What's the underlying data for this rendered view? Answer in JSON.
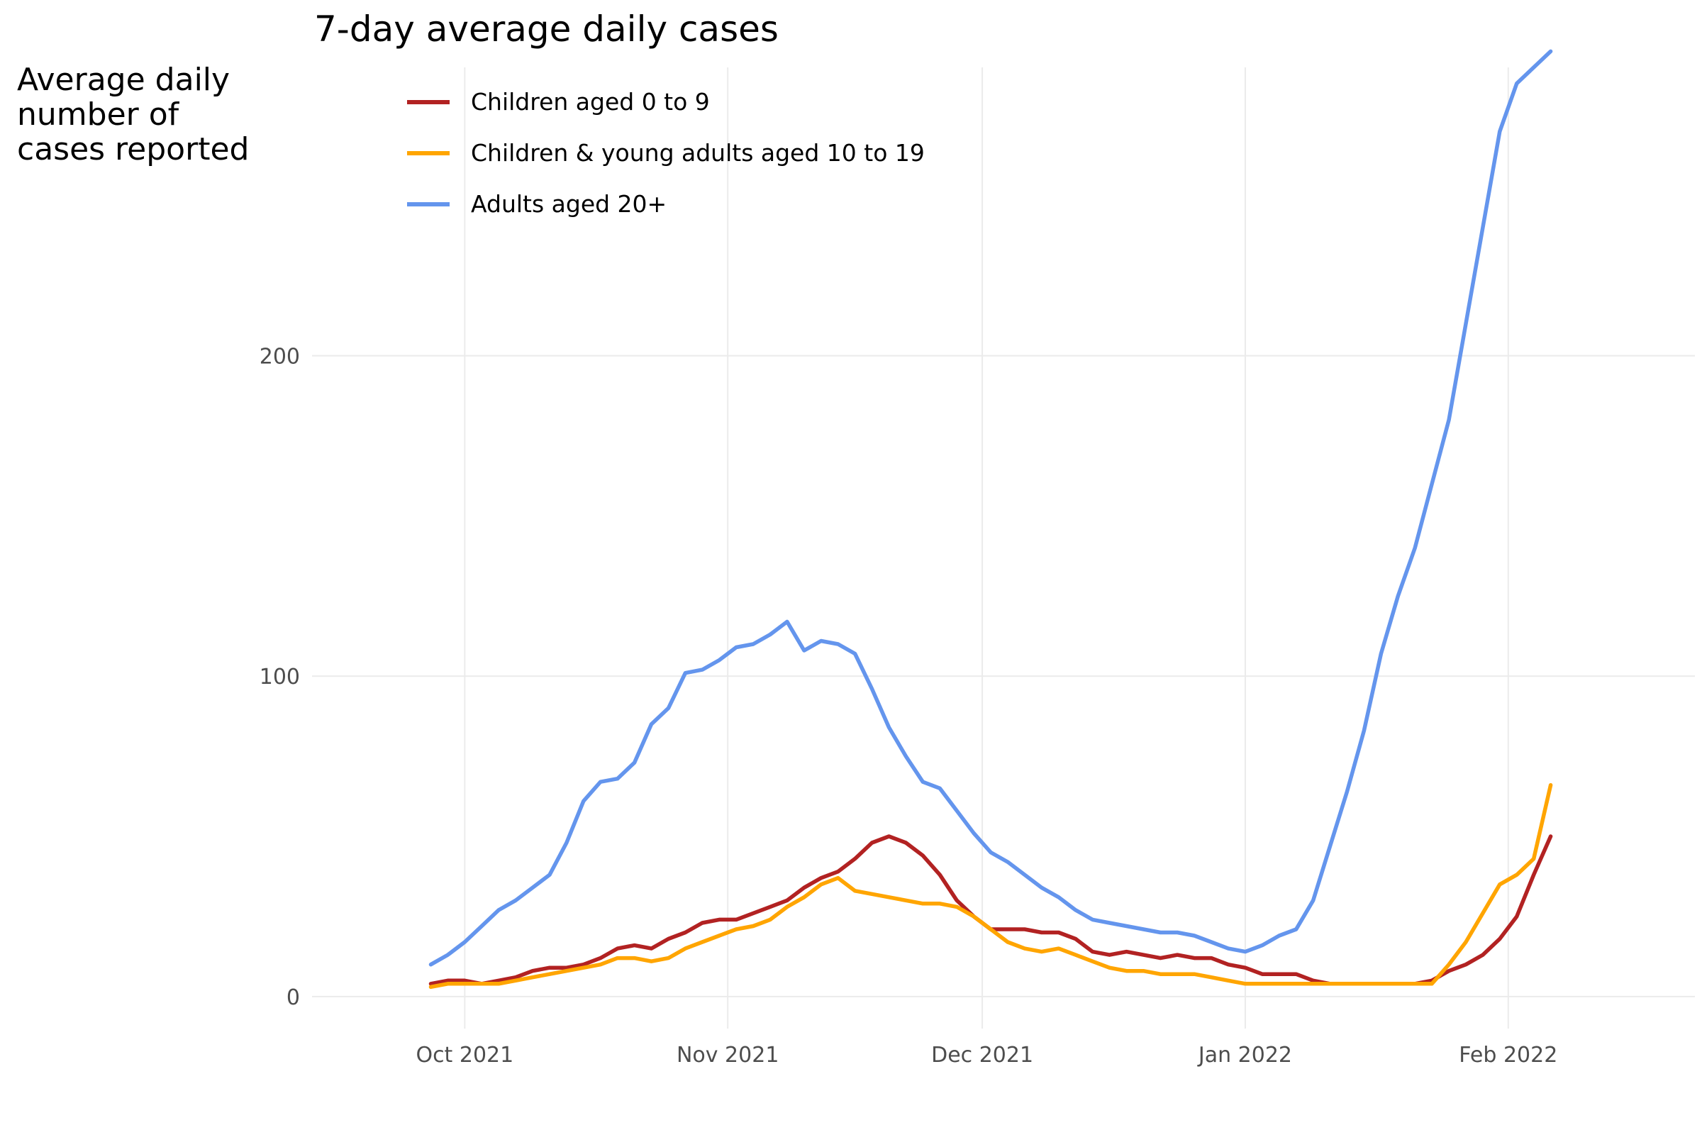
{
  "chart_data": {
    "type": "line",
    "title": "7-day average daily cases",
    "ylabel_lines": [
      "Average daily",
      "number of",
      "cases reported"
    ],
    "xlabel": "",
    "x_start_date": "2021-09-27",
    "x_step_days": 2,
    "xlim": [
      "2021-09-13",
      "2022-02-23"
    ],
    "ylim": [
      -10,
      290
    ],
    "x_ticks": [
      {
        "date": "2021-10-01",
        "label": "Oct 2021"
      },
      {
        "date": "2021-11-01",
        "label": "Nov 2021"
      },
      {
        "date": "2021-12-01",
        "label": "Dec 2021"
      },
      {
        "date": "2022-01-01",
        "label": "Jan 2022"
      },
      {
        "date": "2022-02-01",
        "label": "Feb 2022"
      }
    ],
    "y_ticks": [
      0,
      100,
      200
    ],
    "grid": true,
    "legend_position": "top-left",
    "series": [
      {
        "name": "Children aged 0 to 9",
        "color": "#b22222",
        "values": [
          4,
          5,
          5,
          4,
          5,
          6,
          8,
          9,
          9,
          10,
          12,
          15,
          16,
          15,
          18,
          20,
          23,
          24,
          24,
          26,
          28,
          30,
          34,
          37,
          39,
          43,
          48,
          50,
          48,
          44,
          38,
          30,
          25,
          21,
          21,
          21,
          20,
          20,
          18,
          14,
          13,
          14,
          13,
          12,
          13,
          12,
          12,
          10,
          9,
          7,
          7,
          7,
          5,
          4,
          4,
          4,
          4,
          4,
          4,
          5,
          8,
          10,
          13,
          18,
          25,
          38,
          50
        ]
      },
      {
        "name": "Children & young adults aged 10 to 19",
        "color": "#ffa500",
        "values": [
          3,
          4,
          4,
          4,
          4,
          5,
          6,
          7,
          8,
          9,
          10,
          12,
          12,
          11,
          12,
          15,
          17,
          19,
          21,
          22,
          24,
          28,
          31,
          35,
          37,
          33,
          32,
          31,
          30,
          29,
          29,
          28,
          25,
          21,
          17,
          15,
          14,
          15,
          13,
          11,
          9,
          8,
          8,
          7,
          7,
          7,
          6,
          5,
          4,
          4,
          4,
          4,
          4,
          4,
          4,
          4,
          4,
          4,
          4,
          4,
          10,
          17,
          26,
          35,
          38,
          43,
          66
        ]
      },
      {
        "name": "Adults aged 20+",
        "color": "#6495ed",
        "values": [
          10,
          13,
          17,
          22,
          27,
          30,
          34,
          38,
          48,
          61,
          67,
          68,
          73,
          85,
          90,
          101,
          102,
          105,
          109,
          110,
          113,
          117,
          108,
          111,
          110,
          107,
          96,
          84,
          75,
          67,
          65,
          58,
          51,
          45,
          42,
          38,
          34,
          31,
          27,
          24,
          23,
          22,
          21,
          20,
          20,
          19,
          17,
          15,
          14,
          16,
          19,
          21,
          30,
          47,
          64,
          83,
          107,
          125,
          140,
          160,
          180,
          210,
          240,
          270,
          285,
          290,
          295
        ]
      }
    ]
  }
}
